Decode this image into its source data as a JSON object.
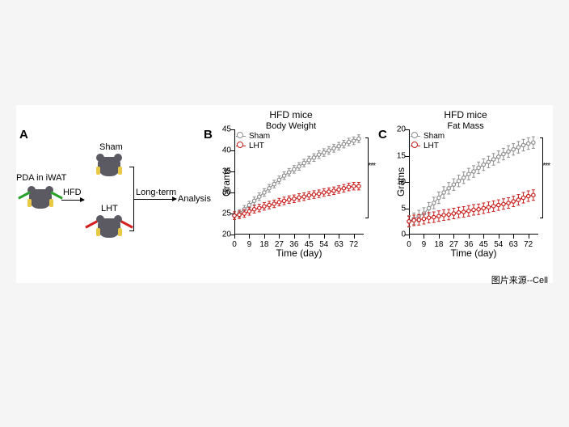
{
  "panel_labels": {
    "a": "A",
    "b": "B",
    "c": "C"
  },
  "schematic": {
    "pda_label": "PDA in iWAT",
    "hfd_label": "HFD",
    "sham_label": "Sham",
    "lht_label": "LHT",
    "longterm_label": "Long-term",
    "analysis_label": "Analysis"
  },
  "colors": {
    "sham": "#8e8e8e",
    "lht": "#c9201f",
    "axis": "#000000",
    "bg": "#ffffff"
  },
  "chartB": {
    "title_line1": "HFD mice",
    "title_line2": "Body Weight",
    "ylabel": "Grams",
    "xlabel": "Time (day)",
    "y_min": 20,
    "y_max": 45,
    "y_step": 5,
    "x_ticks": [
      0,
      9,
      18,
      27,
      36,
      45,
      54,
      63,
      72
    ],
    "legend": [
      {
        "label": "Sham",
        "color": "#8e8e8e",
        "marker": "o"
      },
      {
        "label": "LHT",
        "color": "#c9201f",
        "marker": "o"
      }
    ],
    "significance": "***",
    "series": {
      "sham": {
        "color": "#8e8e8e",
        "err": 0.9,
        "values": [
          [
            0,
            24.5
          ],
          [
            3,
            25.0
          ],
          [
            6,
            26.0
          ],
          [
            9,
            27.0
          ],
          [
            12,
            28.0
          ],
          [
            15,
            29.0
          ],
          [
            18,
            30.0
          ],
          [
            21,
            31.0
          ],
          [
            24,
            32.0
          ],
          [
            27,
            33.0
          ],
          [
            30,
            34.0
          ],
          [
            33,
            34.8
          ],
          [
            36,
            35.5
          ],
          [
            39,
            36.2
          ],
          [
            42,
            37.0
          ],
          [
            45,
            37.7
          ],
          [
            48,
            38.3
          ],
          [
            51,
            39.0
          ],
          [
            54,
            39.5
          ],
          [
            57,
            40.0
          ],
          [
            60,
            40.5
          ],
          [
            63,
            41.0
          ],
          [
            66,
            41.5
          ],
          [
            69,
            42.0
          ],
          [
            72,
            42.3
          ],
          [
            75,
            42.8
          ]
        ]
      },
      "lht": {
        "color": "#c9201f",
        "err": 0.9,
        "values": [
          [
            0,
            24.5
          ],
          [
            3,
            24.7
          ],
          [
            6,
            25.0
          ],
          [
            9,
            25.5
          ],
          [
            12,
            26.0
          ],
          [
            15,
            26.3
          ],
          [
            18,
            26.7
          ],
          [
            21,
            27.0
          ],
          [
            24,
            27.3
          ],
          [
            27,
            27.7
          ],
          [
            30,
            28.0
          ],
          [
            33,
            28.3
          ],
          [
            36,
            28.5
          ],
          [
            39,
            28.8
          ],
          [
            42,
            29.0
          ],
          [
            45,
            29.3
          ],
          [
            48,
            29.5
          ],
          [
            51,
            29.7
          ],
          [
            54,
            30.0
          ],
          [
            57,
            30.2
          ],
          [
            60,
            30.4
          ],
          [
            63,
            30.7
          ],
          [
            66,
            31.0
          ],
          [
            69,
            31.3
          ],
          [
            72,
            31.5
          ],
          [
            75,
            31.5
          ]
        ]
      }
    }
  },
  "chartC": {
    "title_line1": "HFD mice",
    "title_line2": "Fat Mass",
    "ylabel": "Grams",
    "xlabel": "Time (day)",
    "y_min": 0,
    "y_max": 20,
    "y_step": 5,
    "x_ticks": [
      0,
      9,
      18,
      27,
      36,
      45,
      54,
      63,
      72
    ],
    "legend": [
      {
        "label": "Sham",
        "color": "#8e8e8e",
        "marker": "o"
      },
      {
        "label": "LHT",
        "color": "#c9201f",
        "marker": "o"
      }
    ],
    "significance": "***",
    "series": {
      "sham": {
        "color": "#8e8e8e",
        "err": 1.1,
        "values": [
          [
            0,
            2.5
          ],
          [
            3,
            3.0
          ],
          [
            6,
            3.5
          ],
          [
            9,
            4.0
          ],
          [
            12,
            5.0
          ],
          [
            15,
            6.0
          ],
          [
            18,
            7.0
          ],
          [
            21,
            8.0
          ],
          [
            24,
            8.8
          ],
          [
            27,
            9.5
          ],
          [
            30,
            10.2
          ],
          [
            33,
            10.8
          ],
          [
            36,
            11.5
          ],
          [
            39,
            12.0
          ],
          [
            42,
            12.7
          ],
          [
            45,
            13.3
          ],
          [
            48,
            13.8
          ],
          [
            51,
            14.3
          ],
          [
            54,
            14.8
          ],
          [
            57,
            15.3
          ],
          [
            60,
            15.8
          ],
          [
            63,
            16.2
          ],
          [
            66,
            16.6
          ],
          [
            69,
            17.0
          ],
          [
            72,
            17.3
          ],
          [
            75,
            17.5
          ]
        ]
      },
      "lht": {
        "color": "#c9201f",
        "err": 1.0,
        "values": [
          [
            0,
            2.5
          ],
          [
            3,
            2.7
          ],
          [
            6,
            2.8
          ],
          [
            9,
            3.0
          ],
          [
            12,
            3.2
          ],
          [
            15,
            3.3
          ],
          [
            18,
            3.5
          ],
          [
            21,
            3.7
          ],
          [
            24,
            3.8
          ],
          [
            27,
            4.0
          ],
          [
            30,
            4.2
          ],
          [
            33,
            4.3
          ],
          [
            36,
            4.5
          ],
          [
            39,
            4.7
          ],
          [
            42,
            4.8
          ],
          [
            45,
            5.0
          ],
          [
            48,
            5.2
          ],
          [
            51,
            5.4
          ],
          [
            54,
            5.6
          ],
          [
            57,
            5.8
          ],
          [
            60,
            6.0
          ],
          [
            63,
            6.3
          ],
          [
            66,
            6.6
          ],
          [
            69,
            7.0
          ],
          [
            72,
            7.3
          ],
          [
            75,
            7.5
          ]
        ]
      }
    }
  },
  "footnote": "图片来源--Cell"
}
